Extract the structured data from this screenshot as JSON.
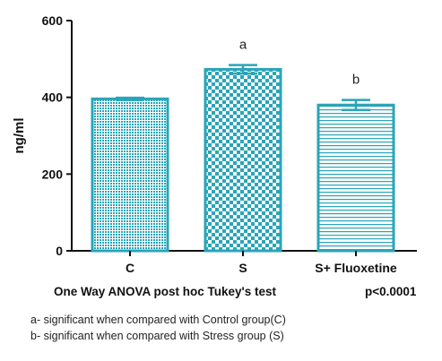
{
  "chart_data": {
    "type": "bar",
    "categories": [
      "C",
      "S",
      "S+ Fluoxetine"
    ],
    "values": [
      396,
      473,
      380
    ],
    "errors": [
      3,
      11,
      13
    ],
    "significance_labels": [
      "",
      "a",
      "b"
    ],
    "ylabel": "ng/ml",
    "xlabel": "",
    "ylim": [
      0,
      600
    ],
    "yticks": [
      0,
      200,
      400,
      600
    ],
    "grid": false,
    "bar_patterns": [
      "fine-dots",
      "checker",
      "horizontal-lines"
    ],
    "colors": {
      "bar_edge": "#2aa5b8",
      "bar_pattern": "#2aa5b8",
      "axis": "#111111"
    }
  },
  "test_caption": "One Way ANOVA post hoc Tukey's test",
  "p_value": "p<0.0001",
  "notes": [
    "a- significant when compared with Control group(C)",
    "b- significant when compared with Stress group (S)"
  ]
}
